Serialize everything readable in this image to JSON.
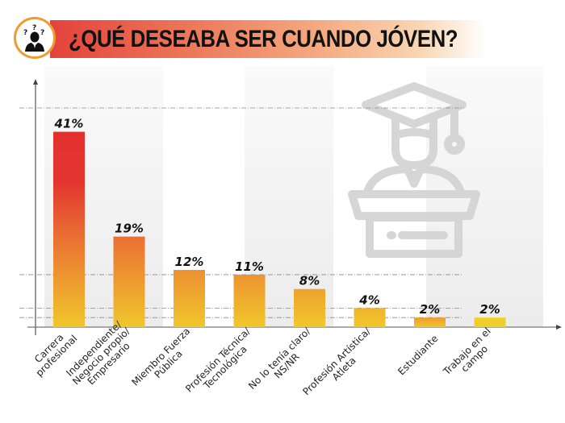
{
  "header": {
    "title": "¿QUÉ DESEABA SER CUANDO JÓVEN?",
    "icon": "confused-person-icon",
    "colors": {
      "band_start": "#e4423c",
      "band_end": "#ffffff",
      "icon_ring": "#f29a2e"
    }
  },
  "decoration": {
    "background_icon": "graduate-at-podium-icon"
  },
  "chart_data": {
    "type": "bar",
    "title": "¿QUÉ DESEABA SER CUANDO JÓVEN?",
    "xlabel": "",
    "ylabel": "",
    "unit": "%",
    "categories": [
      [
        "Carrera",
        "profesional"
      ],
      [
        "Independiente/",
        "Negocio propio/",
        "Empresario"
      ],
      [
        "Miembro Fuerza",
        "Pública"
      ],
      [
        "Profesión Técnica/",
        "Tecnológica"
      ],
      [
        "No lo tenía claro/",
        "NS/NR"
      ],
      [
        "Profesión Artística/",
        "Atleta"
      ],
      [
        "Estudiante"
      ],
      [
        "Trabajo en el",
        "campo"
      ]
    ],
    "values": [
      41,
      19,
      12,
      11,
      8,
      4,
      2,
      2
    ],
    "data_labels": [
      "41%",
      "19%",
      "12%",
      "11%",
      "8%",
      "4%",
      "2%",
      "2%"
    ],
    "ylim": [
      0,
      50
    ],
    "reference_lines": [
      4,
      11,
      2,
      46
    ],
    "grid": false,
    "legend": "none",
    "colors": {
      "top": "#e3302f",
      "mid": "#ec7a33",
      "bottom": "#f1c72c"
    }
  }
}
